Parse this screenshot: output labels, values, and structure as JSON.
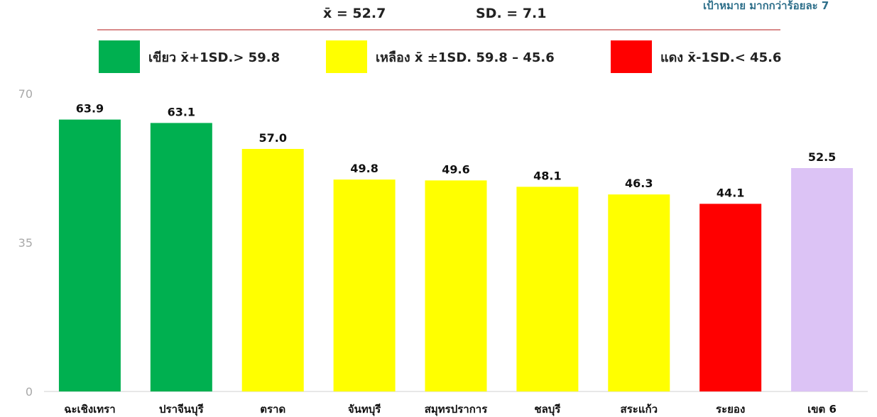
{
  "header": {
    "mean_label": "x̄ = 52.7",
    "sd_label": "SD. = 7.1",
    "target_note": "เป้าหมาย มากกว่าร้อยละ 7"
  },
  "legend": [
    {
      "label": "เขียว x̄+1SD.> 59.8",
      "color": "#00b050"
    },
    {
      "label": "เหลือง x̄ ±1SD. 59.8 – 45.6",
      "color": "#ffff00"
    },
    {
      "label": "แดง x̄-1SD.< 45.6",
      "color": "#ff0000"
    }
  ],
  "chart_data": {
    "type": "bar",
    "categories": [
      "ฉะเชิงเทรา",
      "ปราจีนบุรี",
      "ตราด",
      "จันทบุรี",
      "สมุทรปราการ",
      "ชลบุรี",
      "สระแก้ว",
      "ระยอง",
      "เขต 6"
    ],
    "values": [
      63.9,
      63.1,
      57.0,
      49.8,
      49.6,
      48.1,
      46.3,
      44.1,
      52.5
    ],
    "value_labels": [
      "63.9",
      "63.1",
      "57.0",
      "49.8",
      "49.6",
      "48.1",
      "46.3",
      "44.1",
      "52.5"
    ],
    "colors": [
      "#00b050",
      "#00b050",
      "#ffff00",
      "#ffff00",
      "#ffff00",
      "#ffff00",
      "#ffff00",
      "#ff0000",
      "#dcc3f5"
    ],
    "ylim": [
      0,
      70
    ],
    "yticks": [
      "0",
      "35",
      "70"
    ],
    "grid": false,
    "legend_position": "top"
  }
}
